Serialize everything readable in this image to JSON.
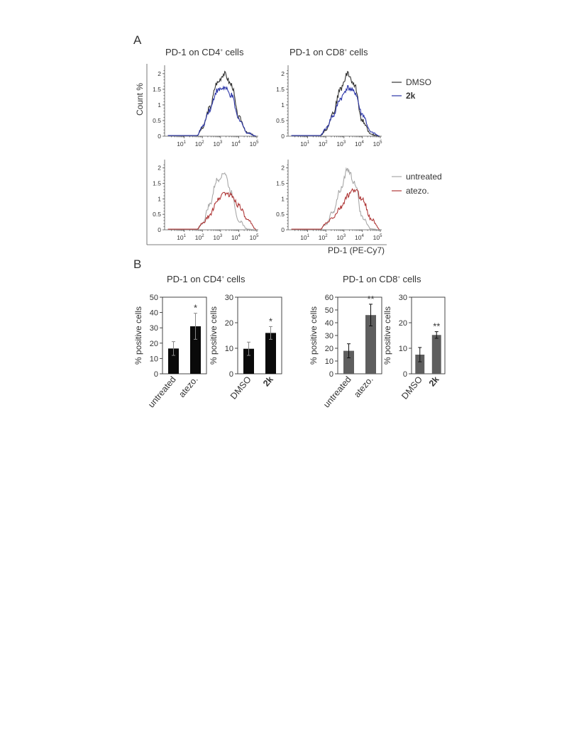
{
  "panel_labels": {
    "a": "A",
    "b": "B"
  },
  "panel_a": {
    "titles": {
      "cd4": {
        "pre": "PD-1 on CD4",
        "sup": "+",
        "post": " cells"
      },
      "cd8": {
        "pre": "PD-1 on CD8",
        "sup": "+",
        "post": " cells"
      }
    },
    "y_axis_label": "Count %",
    "x_axis_label": "PD-1 (PE-Cy7)",
    "y_ticks": [
      "0",
      "0.5",
      "1",
      "1.5",
      "2"
    ],
    "x_ticks": [
      {
        "base": "10",
        "exp": "1"
      },
      {
        "base": "10",
        "exp": "2"
      },
      {
        "base": "10",
        "exp": "3"
      },
      {
        "base": "10",
        "exp": "4"
      },
      {
        "base": "10",
        "exp": "5"
      }
    ],
    "legend_top": [
      {
        "label": "DMSO",
        "color": "#333333",
        "bold": false
      },
      {
        "label": "2k",
        "color": "#2b35a8",
        "bold": true
      }
    ],
    "legend_bottom": [
      {
        "label": "untreated",
        "color": "#a8a8a8",
        "bold": false
      },
      {
        "label": "atezo.",
        "color": "#b03a3a",
        "bold": false
      }
    ]
  },
  "panel_b": {
    "titles": {
      "cd4": {
        "pre": "PD-1 on CD4",
        "sup": "+",
        "post": " cells"
      },
      "cd8": {
        "pre": "PD-1 on CD8",
        "sup": "+",
        "post": " cells"
      }
    }
  },
  "chart_data": [
    {
      "type": "area",
      "panel": "A-top-left",
      "x_scale": "log10",
      "x_range": [
        1,
        100000
      ],
      "ylim": [
        0,
        2.2
      ],
      "ylabel": "Count %",
      "series": [
        {
          "name": "DMSO",
          "color": "#333333",
          "x": [
            1.7,
            2.0,
            2.4,
            2.8,
            3.2,
            3.6,
            4.0,
            4.5,
            5.0
          ],
          "y": [
            0.02,
            0.25,
            0.9,
            1.7,
            2.0,
            1.65,
            0.6,
            0.1,
            0.0
          ]
        },
        {
          "name": "2k",
          "color": "#2b35a8",
          "x": [
            1.7,
            2.0,
            2.4,
            2.8,
            3.2,
            3.6,
            4.0,
            4.5,
            5.0
          ],
          "y": [
            0.02,
            0.3,
            0.85,
            1.45,
            1.55,
            1.3,
            0.55,
            0.1,
            0.0
          ]
        }
      ]
    },
    {
      "type": "area",
      "panel": "A-top-right",
      "x_scale": "log10",
      "x_range": [
        1,
        100000
      ],
      "ylim": [
        0,
        2.2
      ],
      "ylabel": "Count %",
      "series": [
        {
          "name": "DMSO",
          "color": "#333333",
          "x": [
            1.7,
            2.0,
            2.4,
            2.8,
            3.2,
            3.6,
            4.0,
            4.5,
            5.0
          ],
          "y": [
            0.02,
            0.2,
            0.75,
            1.5,
            2.0,
            1.6,
            0.5,
            0.05,
            0.0
          ]
        },
        {
          "name": "2k",
          "color": "#2b35a8",
          "x": [
            1.7,
            2.0,
            2.4,
            2.8,
            3.2,
            3.6,
            4.0,
            4.5,
            5.0
          ],
          "y": [
            0.02,
            0.25,
            0.65,
            1.2,
            1.55,
            1.4,
            0.7,
            0.12,
            0.0
          ]
        }
      ]
    },
    {
      "type": "area",
      "panel": "A-bottom-left",
      "x_scale": "log10",
      "x_range": [
        1,
        100000
      ],
      "ylim": [
        0,
        2.2
      ],
      "ylabel": "Count %",
      "series": [
        {
          "name": "untreated",
          "color": "#a8a8a8",
          "x": [
            1.7,
            2.0,
            2.4,
            2.8,
            3.2,
            3.6,
            4.0,
            4.5,
            5.0
          ],
          "y": [
            0.02,
            0.2,
            0.8,
            1.6,
            1.85,
            1.2,
            0.3,
            0.02,
            0.0
          ]
        },
        {
          "name": "atezo.",
          "color": "#b03a3a",
          "x": [
            1.7,
            2.0,
            2.4,
            2.8,
            3.2,
            3.6,
            4.0,
            4.5,
            5.0
          ],
          "y": [
            0.02,
            0.2,
            0.45,
            0.95,
            1.2,
            1.1,
            0.8,
            0.3,
            0.0
          ]
        }
      ]
    },
    {
      "type": "area",
      "panel": "A-bottom-right",
      "x_scale": "log10",
      "x_range": [
        1,
        100000
      ],
      "ylim": [
        0,
        2.2
      ],
      "ylabel": "Count %",
      "series": [
        {
          "name": "untreated",
          "color": "#a8a8a8",
          "x": [
            1.7,
            2.0,
            2.4,
            2.8,
            3.2,
            3.6,
            4.0,
            4.5,
            5.0
          ],
          "y": [
            0.02,
            0.18,
            0.6,
            1.3,
            1.95,
            1.5,
            0.4,
            0.03,
            0.0
          ]
        },
        {
          "name": "atezo.",
          "color": "#b03a3a",
          "x": [
            1.7,
            2.0,
            2.4,
            2.8,
            3.2,
            3.6,
            4.0,
            4.5,
            5.0
          ],
          "y": [
            0.02,
            0.2,
            0.4,
            0.7,
            1.1,
            1.3,
            1.0,
            0.35,
            0.0
          ]
        }
      ]
    },
    {
      "type": "bar",
      "panel": "B-CD4-atezo",
      "categories": [
        "untreated",
        "atezo."
      ],
      "values": [
        16.5,
        31
      ],
      "errors": [
        4.5,
        8.5
      ],
      "significance": [
        "",
        "*"
      ],
      "bold_categories": [
        false,
        false
      ],
      "ylabel": "% positive cells",
      "ylim": [
        0,
        50
      ],
      "yticks": [
        0,
        10,
        20,
        30,
        40,
        50
      ],
      "bar_color": "#0a0a0a"
    },
    {
      "type": "bar",
      "panel": "B-CD4-2k",
      "categories": [
        "DMSO",
        "2k"
      ],
      "values": [
        9.8,
        16
      ],
      "errors": [
        2.6,
        2.5
      ],
      "significance": [
        "",
        "*"
      ],
      "bold_categories": [
        false,
        true
      ],
      "ylabel": "% positive cells",
      "ylim": [
        0,
        30
      ],
      "yticks": [
        0,
        10,
        20,
        30
      ],
      "bar_color": "#0a0a0a"
    },
    {
      "type": "bar",
      "panel": "B-CD8-atezo",
      "categories": [
        "untreated",
        "atezo."
      ],
      "values": [
        18,
        46
      ],
      "errors": [
        5.5,
        8.5
      ],
      "significance": [
        "",
        "**"
      ],
      "bold_categories": [
        false,
        false
      ],
      "ylabel": "% positive cells",
      "ylim": [
        0,
        60
      ],
      "yticks": [
        0,
        10,
        20,
        30,
        40,
        50,
        60
      ],
      "bar_color": "#5e5e5e"
    },
    {
      "type": "bar",
      "panel": "B-CD8-2k",
      "categories": [
        "DMSO",
        "2k"
      ],
      "values": [
        7.5,
        15.2
      ],
      "errors": [
        2.8,
        1.3
      ],
      "significance": [
        "",
        "**"
      ],
      "bold_categories": [
        false,
        true
      ],
      "ylabel": "% positive cells",
      "ylim": [
        0,
        30
      ],
      "yticks": [
        0,
        10,
        20,
        30
      ],
      "bar_color": "#5e5e5e"
    }
  ]
}
